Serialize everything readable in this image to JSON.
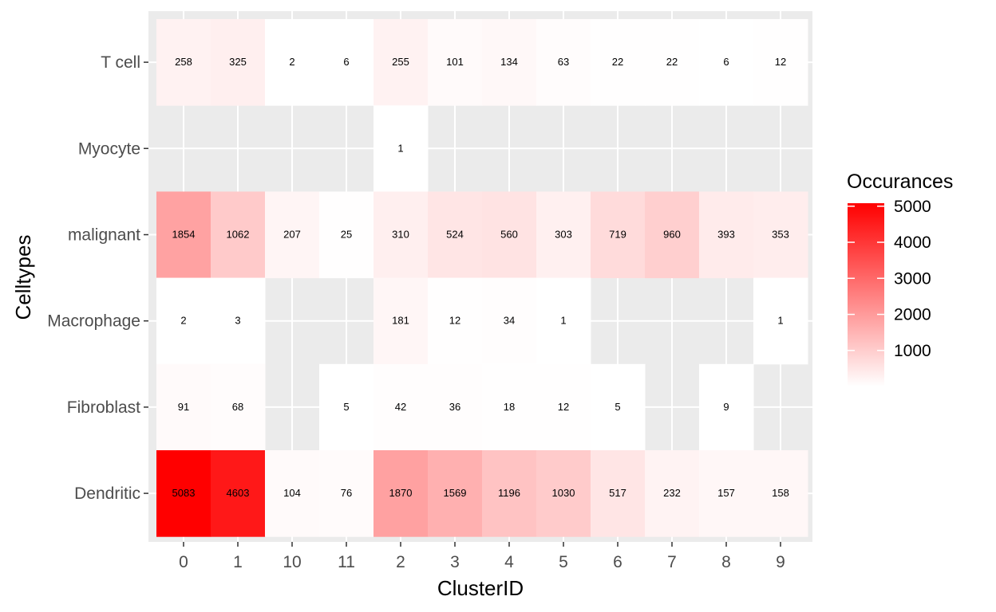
{
  "chart_data": {
    "type": "heatmap",
    "xlabel": "ClusterID",
    "ylabel": "Celltypes",
    "x_categories": [
      "0",
      "1",
      "10",
      "11",
      "2",
      "3",
      "4",
      "5",
      "6",
      "7",
      "8",
      "9"
    ],
    "y_categories": [
      "T cell",
      "Myocyte",
      "malignant",
      "Macrophage",
      "Fibroblast",
      "Dendritic"
    ],
    "values": [
      [
        258,
        325,
        2,
        6,
        255,
        101,
        134,
        63,
        22,
        22,
        6,
        12
      ],
      [
        null,
        null,
        null,
        null,
        1,
        null,
        null,
        null,
        null,
        null,
        null,
        null
      ],
      [
        1854,
        1062,
        207,
        25,
        310,
        524,
        560,
        303,
        719,
        960,
        393,
        353
      ],
      [
        2,
        3,
        null,
        null,
        181,
        12,
        34,
        1,
        null,
        null,
        null,
        1
      ],
      [
        91,
        68,
        null,
        5,
        42,
        36,
        18,
        12,
        5,
        null,
        9,
        null
      ],
      [
        5083,
        4603,
        104,
        76,
        1870,
        1569,
        1196,
        1030,
        517,
        232,
        157,
        158
      ]
    ],
    "color_scale": {
      "low": "#ffffff",
      "high": "#ff0000",
      "limits": [
        1,
        5083
      ],
      "missing_fill": "#ebebeb"
    },
    "legend": {
      "title": "Occurances",
      "position": "right",
      "breaks": [
        1000,
        2000,
        3000,
        4000,
        5000
      ],
      "break_labels": [
        "1000",
        "2000",
        "3000",
        "4000",
        "5000"
      ]
    },
    "grid": true,
    "panel_background": "#ebebeb",
    "grid_color": "#ffffff"
  }
}
